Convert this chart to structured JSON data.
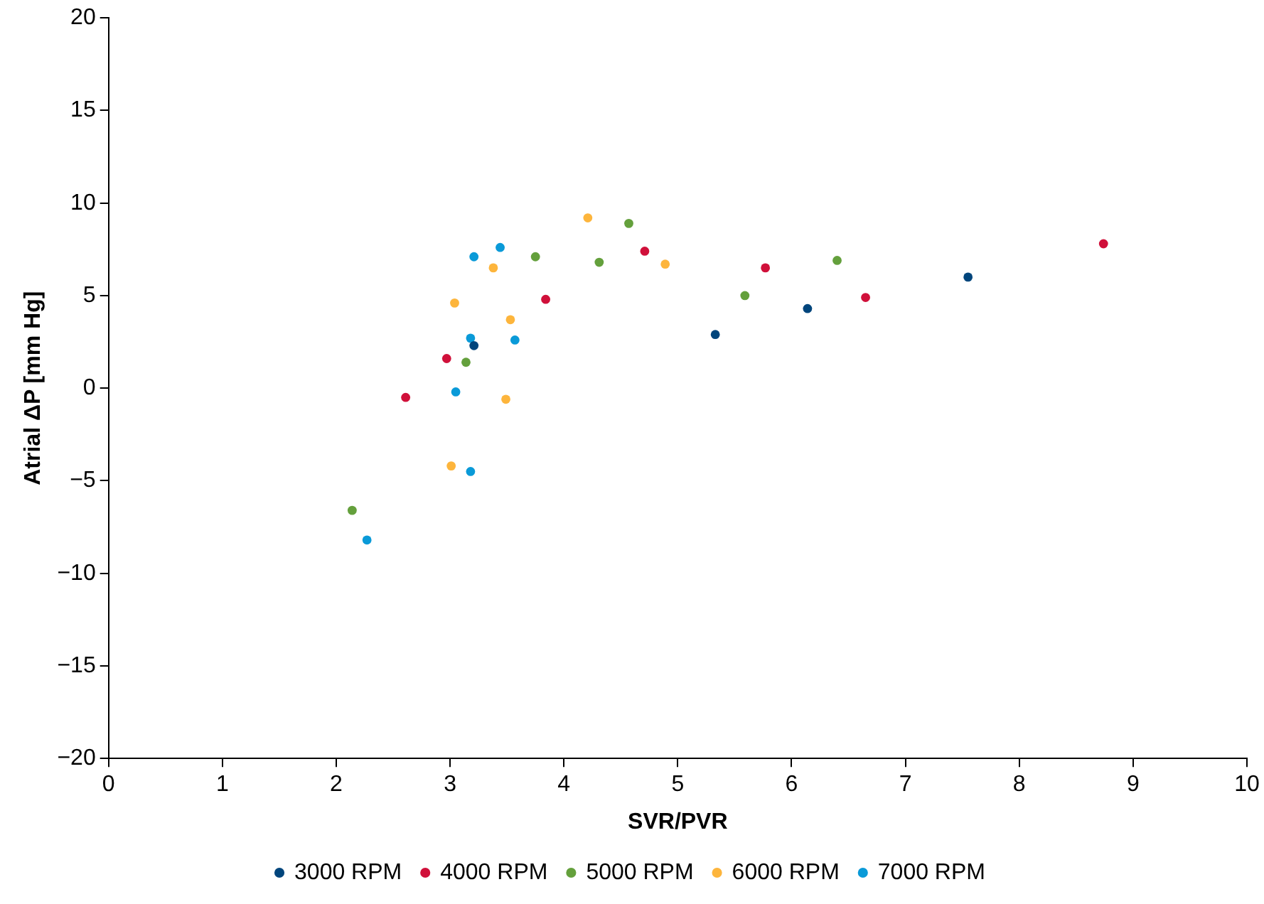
{
  "chart_data": {
    "type": "scatter",
    "xlabel": "SVR/PVR",
    "ylabel": "Atrial ΔP [mm Hg]",
    "xlim": [
      0,
      10
    ],
    "xticks": [
      0,
      1,
      2,
      3,
      4,
      5,
      6,
      7,
      8,
      9,
      10
    ],
    "ylim": [
      -20,
      20
    ],
    "yticks": [
      -20,
      -15,
      -10,
      -5,
      0,
      5,
      10,
      15,
      20
    ],
    "grid": false,
    "legend": "bottom",
    "marker": "circle",
    "series": [
      {
        "name": "3000 RPM",
        "color": "#00457c",
        "x": [
          3.21,
          5.33,
          6.14,
          7.55
        ],
        "values": [
          2.3,
          2.9,
          4.3,
          6.0
        ]
      },
      {
        "name": "4000 RPM",
        "color": "#d0103a",
        "x": [
          2.61,
          2.97,
          3.84,
          4.71,
          5.77,
          6.65,
          8.74
        ],
        "values": [
          -0.5,
          1.6,
          4.8,
          7.4,
          6.5,
          4.9,
          7.8
        ]
      },
      {
        "name": "5000 RPM",
        "color": "#64a03c",
        "x": [
          2.14,
          3.14,
          3.75,
          4.31,
          4.57,
          5.59,
          6.4
        ],
        "values": [
          -6.6,
          1.4,
          7.1,
          6.8,
          8.9,
          5.0,
          6.9
        ]
      },
      {
        "name": "6000 RPM",
        "color": "#fdb53c",
        "x": [
          4.21,
          3.38,
          3.04,
          3.53,
          3.49,
          3.01,
          4.89
        ],
        "values": [
          9.2,
          6.5,
          4.6,
          3.7,
          -0.6,
          -4.2,
          6.7
        ]
      },
      {
        "name": "7000 RPM",
        "color": "#0a9ad8",
        "x": [
          3.44,
          3.21,
          3.18,
          3.57,
          3.05,
          3.18,
          2.27
        ],
        "values": [
          7.6,
          7.1,
          2.7,
          2.6,
          -0.2,
          -4.5,
          -8.2
        ]
      }
    ]
  }
}
